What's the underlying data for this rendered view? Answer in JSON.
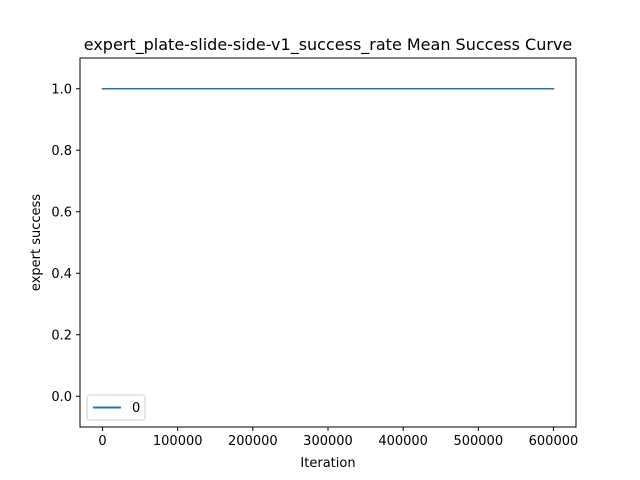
{
  "chart_data": {
    "type": "line",
    "title": "expert_plate-slide-side-v1_success_rate Mean Success Curve",
    "xlabel": "Iteration",
    "ylabel": "expert success",
    "xlim": [
      -30000,
      630000
    ],
    "ylim": [
      -0.1,
      1.1
    ],
    "xticks": [
      0,
      100000,
      200000,
      300000,
      400000,
      500000,
      600000
    ],
    "xtick_labels": [
      "0",
      "100000",
      "200000",
      "300000",
      "400000",
      "500000",
      "600000"
    ],
    "yticks": [
      0.0,
      0.2,
      0.4,
      0.6,
      0.8,
      1.0
    ],
    "ytick_labels": [
      "0.0",
      "0.2",
      "0.4",
      "0.6",
      "0.8",
      "1.0"
    ],
    "grid": false,
    "legend_position": "lower-left",
    "series": [
      {
        "name": "0",
        "color": "#1f77b4",
        "x": [
          0,
          600000
        ],
        "y": [
          1.0,
          1.0
        ]
      }
    ]
  }
}
